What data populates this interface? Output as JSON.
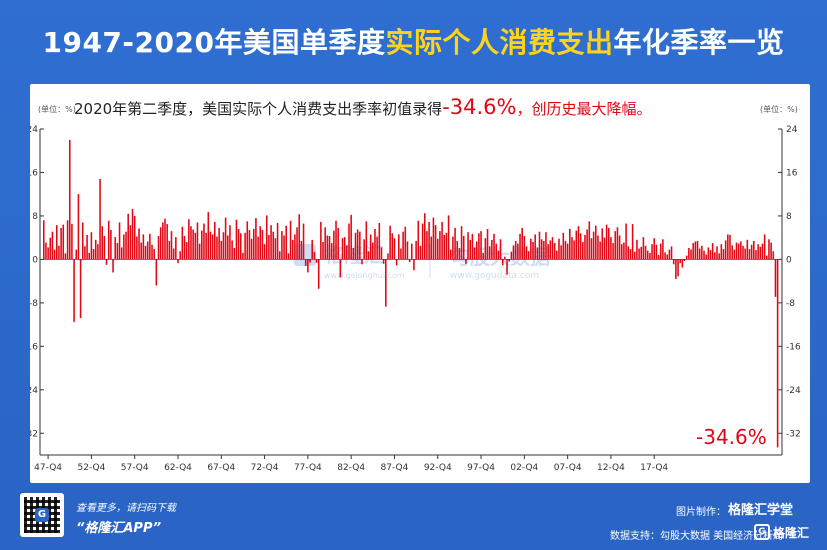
{
  "header": {
    "title_prefix": "1947-2020年美国单季度",
    "title_highlight": "实际个人消费支出",
    "title_suffix": "年化季率一览"
  },
  "chart_data": {
    "type": "bar",
    "annotation_prefix": "2020年第二季度，美国实际个人消费支出季率初值录得",
    "annotation_value": "-34.6%",
    "annotation_suffix": "，创历史最大降幅。",
    "last_value_label": "-34.6%",
    "y_unit_left": "(单位：%)",
    "y_unit_right": "(单位：%)",
    "yticks": [
      24,
      16,
      8,
      0,
      -8,
      -16,
      -24,
      -32
    ],
    "ylim": [
      -36,
      24
    ],
    "xticks": [
      "47-Q4",
      "52-Q4",
      "57-Q4",
      "62-Q4",
      "67-Q4",
      "72-Q4",
      "77-Q4",
      "82-Q4",
      "87-Q4",
      "92-Q4",
      "97-Q4",
      "02-Q4",
      "07-Q4",
      "12-Q4",
      "17-Q4"
    ],
    "start": "1947-Q2",
    "end": "2020-Q2",
    "values": [
      7.2,
      3.1,
      2.2,
      4.0,
      5.1,
      1.8,
      6.3,
      2.5,
      5.8,
      6.4,
      1.1,
      7.2,
      22.0,
      6.5,
      -11.5,
      1.8,
      12.0,
      -10.8,
      6.8,
      2.4,
      4.5,
      1.2,
      5.0,
      1.9,
      3.6,
      2.8,
      14.8,
      6.1,
      4.3,
      -1.0,
      7.1,
      5.4,
      -2.4,
      4.1,
      3.0,
      6.8,
      2.2,
      4.6,
      5.1,
      8.4,
      6.3,
      9.3,
      8.0,
      4.2,
      5.7,
      3.1,
      4.6,
      2.5,
      3.3,
      4.7,
      2.7,
      1.9,
      -4.8,
      4.3,
      5.9,
      6.8,
      7.5,
      6.5,
      3.4,
      5.2,
      2.0,
      4.1,
      -0.7,
      1.5,
      6.0,
      4.3,
      3.2,
      7.4,
      6.1,
      5.5,
      4.9,
      6.8,
      2.9,
      5.3,
      6.6,
      4.9,
      8.7,
      5.1,
      4.6,
      6.9,
      4.2,
      5.8,
      3.4,
      5.0,
      7.7,
      4.4,
      6.3,
      3.5,
      2.1,
      7.3,
      5.6,
      4.8,
      1.2,
      4.9,
      7.0,
      5.4,
      3.8,
      5.6,
      7.6,
      4.2,
      6.1,
      5.4,
      2.8,
      8.1,
      4.5,
      6.3,
      5.1,
      3.9,
      6.7,
      1.5,
      5.2,
      4.4,
      6.2,
      1.1,
      7.1,
      3.6,
      4.6,
      5.9,
      8.3,
      3.4,
      6.6,
      -1.2,
      -2.4,
      -0.6,
      3.6,
      1.4,
      -0.6,
      -5.4,
      6.9,
      3.2,
      5.9,
      4.4,
      4.3,
      3.0,
      5.3,
      7.1,
      5.8,
      -3.3,
      3.9,
      4.1,
      2.6,
      6.6,
      8.2,
      2.1,
      4.9,
      5.5,
      5.1,
      -0.9,
      3.7,
      7.0,
      1.5,
      4.6,
      3.1,
      5.6,
      4.2,
      6.7,
      2.2,
      -0.8,
      -8.7,
      1.1,
      6.2,
      4.8,
      3.9,
      -1.1,
      4.6,
      2.0,
      5.1,
      6.0,
      3.3,
      -0.5,
      2.9,
      -2.0,
      3.4,
      7.1,
      2.5,
      6.6,
      8.5,
      5.2,
      6.9,
      4.2,
      7.7,
      6.3,
      3.8,
      5.2,
      6.9,
      4.5,
      4.9,
      8.1,
      1.8,
      4.2,
      5.8,
      3.4,
      2.1,
      6.1,
      4.3,
      -0.8,
      5.0,
      3.6,
      4.7,
      2.2,
      3.3,
      4.8,
      5.2,
      1.2,
      3.9,
      5.6,
      2.4,
      3.6,
      4.7,
      2.9,
      1.6,
      3.7,
      -1.1,
      0.5,
      -2.8,
      -0.4,
      1.4,
      2.6,
      3.4,
      2.9,
      4.7,
      5.8,
      4.3,
      2.4,
      1.5,
      3.8,
      3.2,
      4.6,
      2.2,
      5.1,
      3.7,
      3.4,
      5.0,
      2.8,
      3.5,
      4.1,
      3.0,
      1.6,
      3.8,
      2.6,
      4.9,
      3.4,
      2.9,
      5.6,
      4.1,
      3.5,
      5.3,
      6.1,
      4.8,
      3.2,
      4.5,
      5.5,
      7.0,
      3.9,
      5.1,
      6.2,
      4.4,
      3.3,
      5.7,
      4.0,
      6.4,
      5.8,
      4.1,
      3.0,
      5.2,
      5.9,
      4.4,
      2.8,
      3.1,
      6.6,
      2.4,
      1.9,
      6.5,
      1.4,
      3.6,
      2.0,
      2.3,
      4.1,
      2.5,
      1.6,
      1.2,
      2.8,
      3.9,
      2.7,
      0.8,
      2.9,
      3.7,
      1.3,
      0.9,
      1.8,
      2.4,
      -0.9,
      -3.6,
      -3.1,
      -0.7,
      -1.5,
      -0.3,
      0.7,
      2.1,
      1.8,
      3.0,
      3.3,
      3.4,
      2.0,
      2.5,
      1.6,
      0.9,
      2.2,
      1.7,
      3.0,
      1.3,
      2.4,
      1.1,
      2.8,
      1.9,
      3.5,
      4.6,
      4.5,
      2.6,
      1.8,
      3.1,
      2.9,
      3.3,
      2.5,
      2.0,
      3.6,
      1.9,
      2.7,
      3.4,
      1.7,
      2.8,
      2.3,
      2.9,
      4.6,
      0.7,
      3.7,
      3.1,
      1.5,
      -6.9,
      -34.6
    ]
  },
  "watermark": {
    "brand_cn": "格隆汇",
    "brand_url": "www.gelonghui.com",
    "source_cn": "勾股大数据",
    "source_url": "www.gogudata.com"
  },
  "footer": {
    "promo_line1": "查看更多，请扫码下载",
    "promo_line2": "“格隆汇APP”",
    "qr_badge": "G",
    "credit_label": "图片制作：",
    "credit_brand": "格隆汇学堂",
    "data_label": "数据支持：勾股大数据  美国经济分析局",
    "logo_text": "格隆汇",
    "logo_mark": "G"
  },
  "colors": {
    "background": "#2a64c4",
    "bar": "#e30613",
    "highlight": "#ffd21e",
    "annotation": "#e30613"
  }
}
